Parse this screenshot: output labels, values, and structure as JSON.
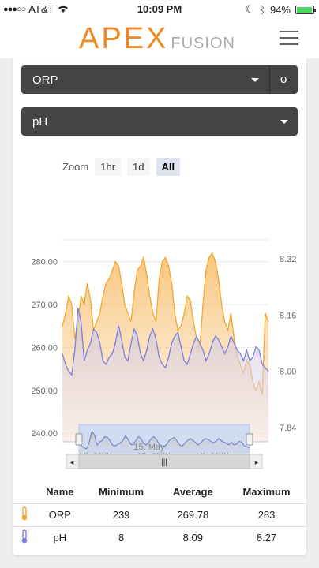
{
  "status": {
    "carrier": "AT&T",
    "time": "10:09 PM",
    "battery": "94%",
    "battery_level": 0.94
  },
  "header": {
    "logo_main": "APEX",
    "logo_sub": "FUSION"
  },
  "selects": {
    "primary": "ORP",
    "sigma": "σ",
    "secondary": "pH"
  },
  "zoom": {
    "label": "Zoom",
    "options": [
      "1hr",
      "1d",
      "All"
    ],
    "active": "All"
  },
  "chart_data": {
    "type": "area",
    "x_ticks": [
      "14. May",
      "16. May",
      "18. May"
    ],
    "y_left": {
      "ticks": [
        "280.00",
        "270.00",
        "260.00",
        "250.00",
        "240.00"
      ],
      "range": [
        240,
        280
      ]
    },
    "y_right": {
      "ticks": [
        "8.32",
        "8.16",
        "8.00",
        "7.84"
      ],
      "range": [
        7.84,
        8.32
      ]
    },
    "series": [
      {
        "name": "ORP",
        "color": "#f0a830",
        "axis": "left",
        "values": [
          265,
          268,
          272,
          270,
          262,
          266,
          272,
          270,
          275,
          271,
          264,
          266,
          268,
          272,
          275,
          276,
          278,
          280,
          279,
          275,
          270,
          268,
          266,
          273,
          278,
          279,
          281,
          277,
          272,
          268,
          266,
          276,
          280,
          281,
          279,
          275,
          268,
          264,
          265,
          268,
          272,
          271,
          266,
          262,
          260,
          270,
          278,
          281,
          282,
          280,
          276,
          270,
          266,
          264,
          268,
          262,
          258,
          256,
          254,
          257,
          256,
          252,
          250,
          252,
          249,
          268,
          266
        ]
      },
      {
        "name": "pH",
        "color": "#7b7fe0",
        "axis": "right",
        "values": [
          8.05,
          8.02,
          8.0,
          7.99,
          8.06,
          8.18,
          8.14,
          8.03,
          8.06,
          8.08,
          8.12,
          8.11,
          8.08,
          8.03,
          8.02,
          8.04,
          8.05,
          8.08,
          8.13,
          8.09,
          8.04,
          8.03,
          8.08,
          8.12,
          8.1,
          8.05,
          8.03,
          8.06,
          8.1,
          8.12,
          8.09,
          8.04,
          8.02,
          8.01,
          8.04,
          8.08,
          8.1,
          8.11,
          8.07,
          8.03,
          8.02,
          8.05,
          8.08,
          8.1,
          8.08,
          8.06,
          8.03,
          8.05,
          8.08,
          8.1,
          8.09,
          8.07,
          8.05,
          8.07,
          8.1,
          8.08,
          8.06,
          8.05,
          8.03,
          8.06,
          8.03,
          8.04,
          8.07,
          8.06,
          8.02,
          8.01,
          8.0
        ]
      }
    ],
    "navigator_label": "15. May"
  },
  "stats": {
    "headers": [
      "Name",
      "Minimum",
      "Average",
      "Maximum"
    ],
    "rows": [
      {
        "name": "ORP",
        "min": "239",
        "avg": "269.78",
        "max": "283",
        "icon": "thermometer-icon",
        "color": "#f0a830"
      },
      {
        "name": "pH",
        "min": "8",
        "avg": "8.09",
        "max": "8.27",
        "icon": "thermometer-icon",
        "color": "#7b7fe0"
      }
    ]
  }
}
